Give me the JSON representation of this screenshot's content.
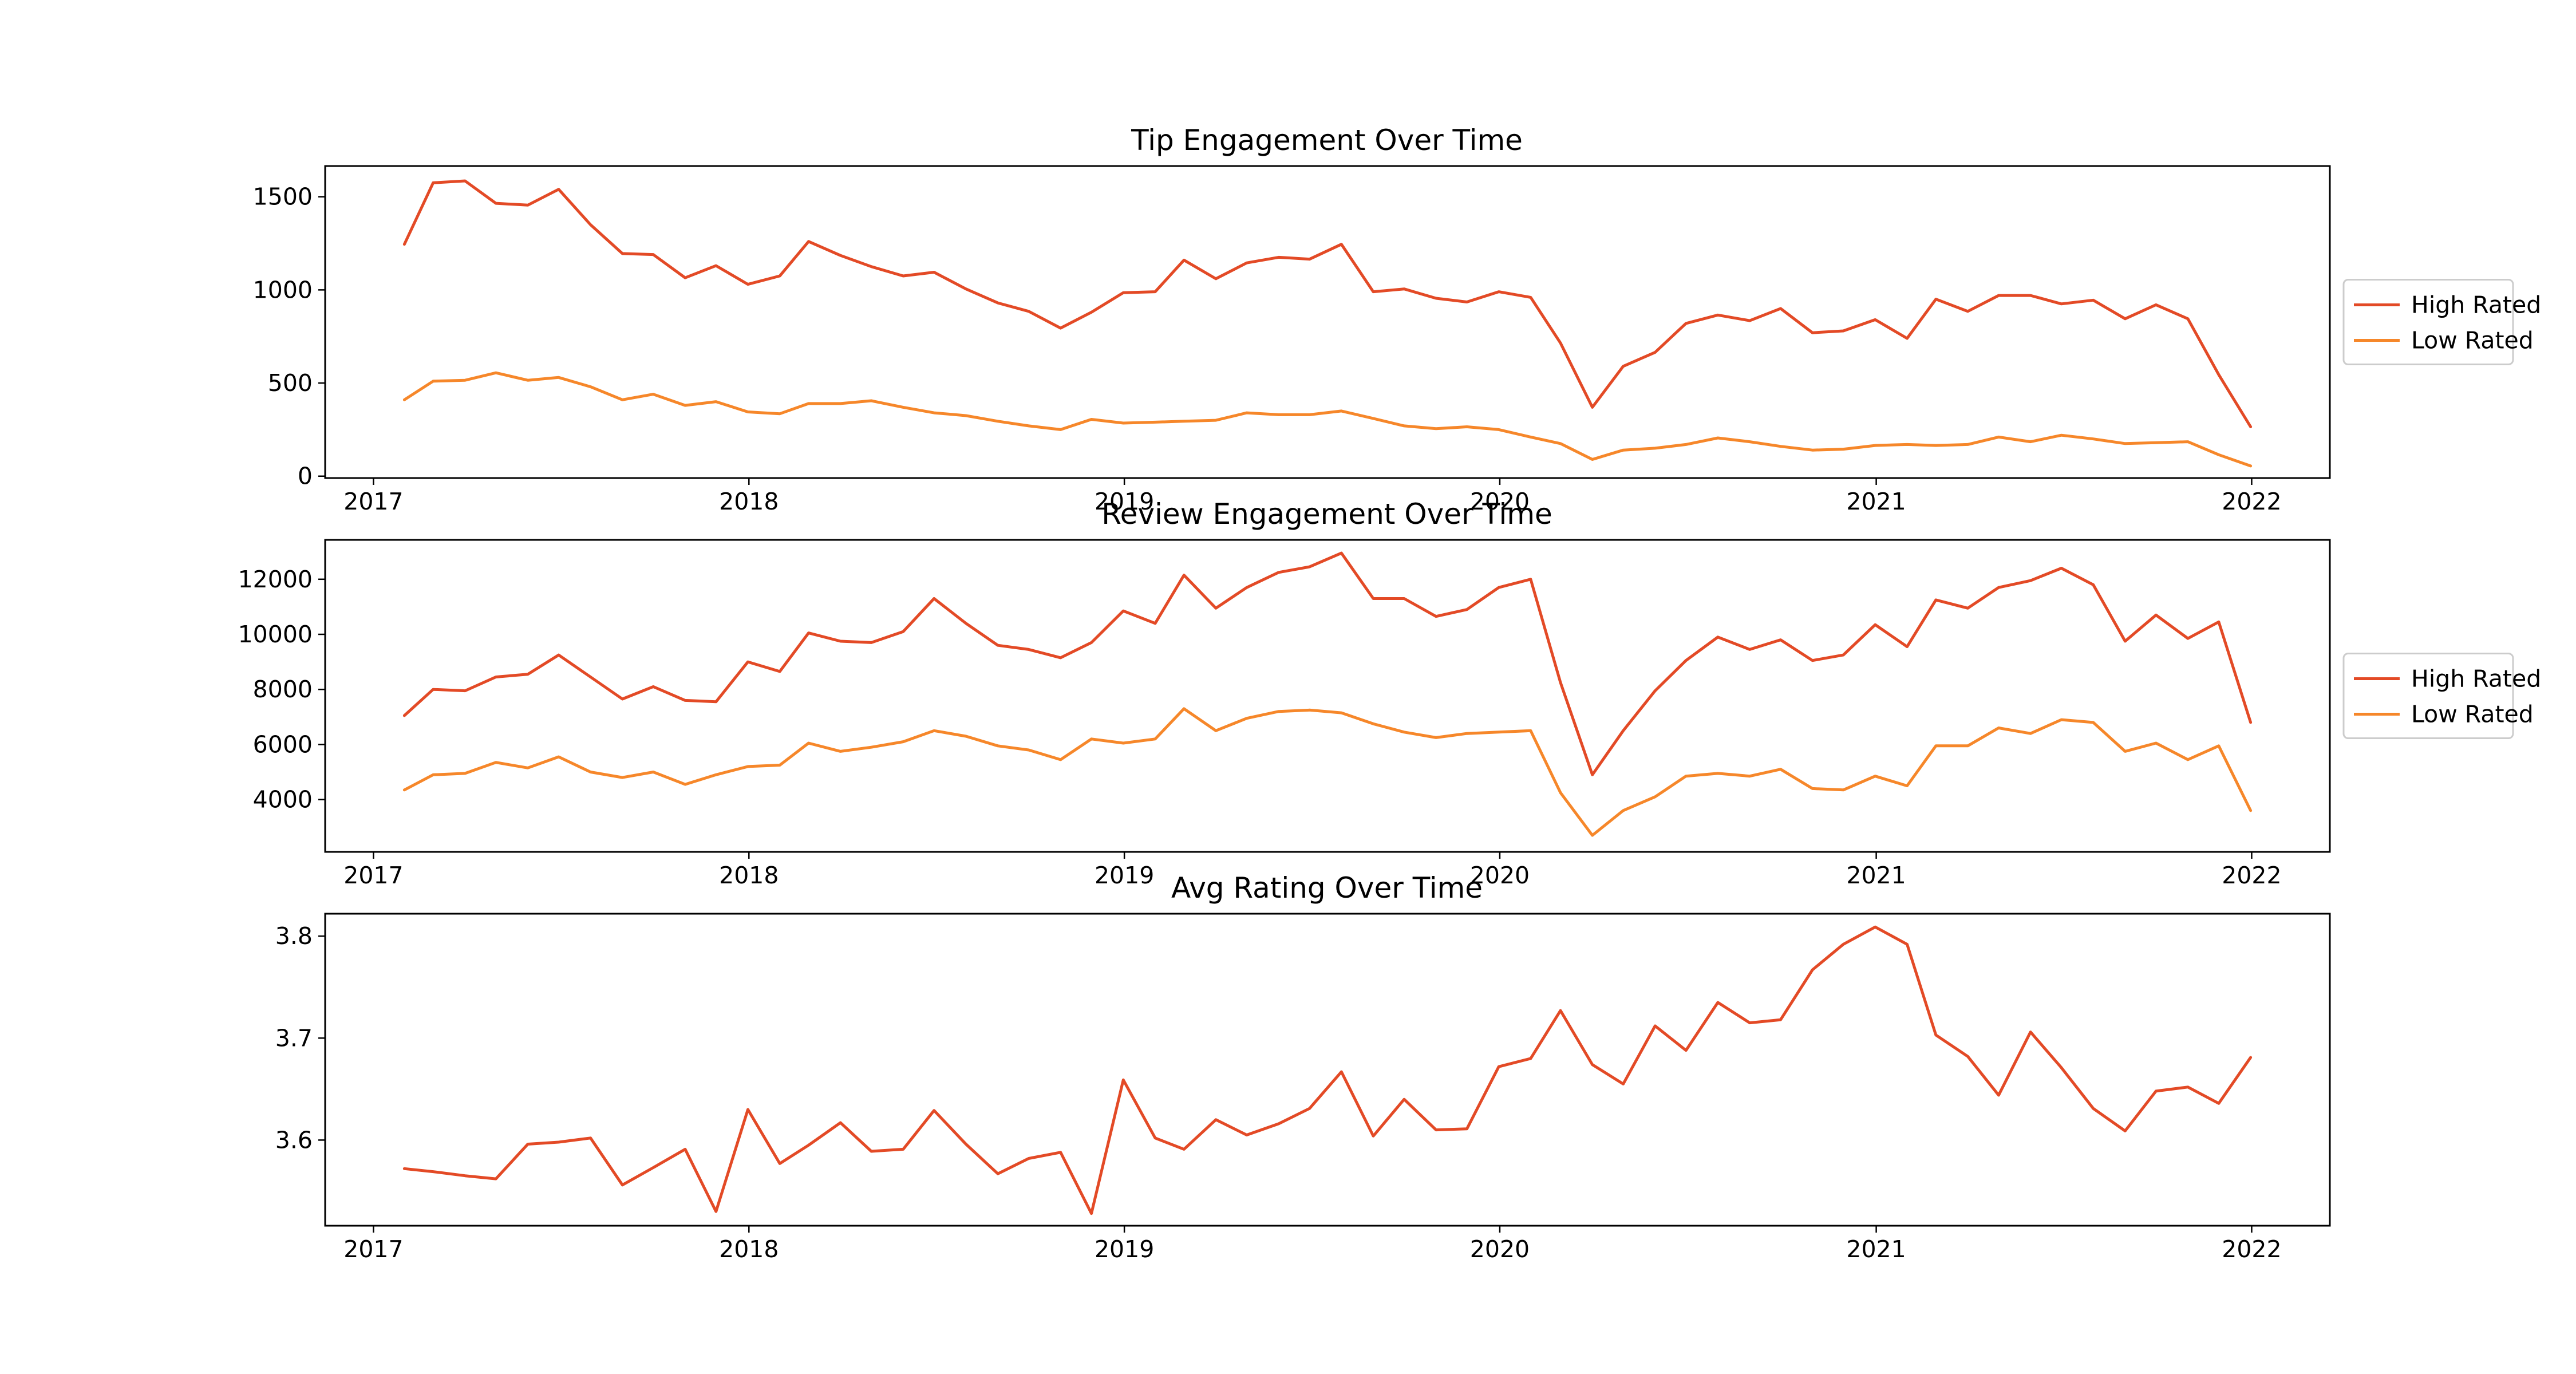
{
  "colors": {
    "high": "#e34a26",
    "low": "#f6872a"
  },
  "chart_data": [
    {
      "type": "line",
      "title": "Tip Engagement Over Time",
      "x_ticks": [
        "2017",
        "2018",
        "2019",
        "2020",
        "2021",
        "2022"
      ],
      "y_ticks": [
        "0",
        "500",
        "1000",
        "1500"
      ],
      "y_tick_values": [
        0,
        500,
        1000,
        1500
      ],
      "xlim": [
        "2016-11-15",
        "2022-03-18"
      ],
      "ylim": [
        -10,
        1665
      ],
      "legend": "center-right",
      "series": [
        {
          "name": "High Rated",
          "color_key": "high",
          "values": [
            1245,
            1575,
            1585,
            1465,
            1455,
            1540,
            1350,
            1195,
            1190,
            1065,
            1130,
            1030,
            1075,
            1260,
            1185,
            1125,
            1075,
            1095,
            1005,
            930,
            885,
            795,
            880,
            985,
            990,
            1160,
            1060,
            1145,
            1175,
            1165,
            1245,
            990,
            1005,
            955,
            935,
            990,
            960,
            715,
            370,
            590,
            665,
            820,
            865,
            835,
            900,
            770,
            780,
            840,
            740,
            950,
            885,
            970,
            970,
            925,
            945,
            845,
            920,
            845,
            545,
            265
          ]
        },
        {
          "name": "Low Rated",
          "color_key": "low",
          "values": [
            410,
            510,
            515,
            555,
            515,
            530,
            480,
            410,
            440,
            380,
            400,
            345,
            335,
            390,
            390,
            405,
            370,
            340,
            325,
            295,
            270,
            250,
            305,
            285,
            290,
            295,
            300,
            340,
            330,
            330,
            350,
            310,
            270,
            255,
            265,
            250,
            210,
            175,
            90,
            140,
            150,
            170,
            205,
            185,
            160,
            140,
            145,
            165,
            170,
            165,
            170,
            210,
            185,
            220,
            200,
            175,
            180,
            185,
            115,
            55
          ]
        }
      ],
      "x": [
        "2017-01-31",
        "2017-02-28",
        "2017-03-31",
        "2017-04-30",
        "2017-05-31",
        "2017-06-30",
        "2017-07-31",
        "2017-08-31",
        "2017-09-30",
        "2017-10-31",
        "2017-11-30",
        "2017-12-31",
        "2018-01-31",
        "2018-02-28",
        "2018-03-31",
        "2018-04-30",
        "2018-05-31",
        "2018-06-30",
        "2018-07-31",
        "2018-08-31",
        "2018-09-30",
        "2018-10-31",
        "2018-11-30",
        "2018-12-31",
        "2019-01-31",
        "2019-02-28",
        "2019-03-31",
        "2019-04-30",
        "2019-05-31",
        "2019-06-30",
        "2019-07-31",
        "2019-08-31",
        "2019-09-30",
        "2019-10-31",
        "2019-11-30",
        "2019-12-31",
        "2020-01-31",
        "2020-02-29",
        "2020-03-31",
        "2020-04-30",
        "2020-05-31",
        "2020-06-30",
        "2020-07-31",
        "2020-08-31",
        "2020-09-30",
        "2020-10-31",
        "2020-11-30",
        "2020-12-31",
        "2021-01-31",
        "2021-02-28",
        "2021-03-31",
        "2021-04-30",
        "2021-05-31",
        "2021-06-30",
        "2021-07-31",
        "2021-08-31",
        "2021-09-30",
        "2021-10-31",
        "2021-11-30",
        "2021-12-31"
      ]
    },
    {
      "type": "line",
      "title": "Review Engagement Over Time",
      "x_ticks": [
        "2017",
        "2018",
        "2019",
        "2020",
        "2021",
        "2022"
      ],
      "y_ticks": [
        "4000",
        "6000",
        "8000",
        "10000",
        "12000"
      ],
      "y_tick_values": [
        4000,
        6000,
        8000,
        10000,
        12000
      ],
      "xlim": [
        "2016-11-15",
        "2022-03-18"
      ],
      "ylim": [
        2100,
        13430
      ],
      "legend": "center-right",
      "series": [
        {
          "name": "High Rated",
          "color_key": "high",
          "values": [
            7050,
            8000,
            7950,
            8450,
            8550,
            9250,
            8450,
            7650,
            8100,
            7600,
            7550,
            9000,
            8650,
            10050,
            9750,
            9700,
            10100,
            11300,
            10400,
            9600,
            9450,
            9150,
            9700,
            10850,
            10400,
            12150,
            10950,
            11700,
            12250,
            12450,
            12950,
            11300,
            11300,
            10650,
            10900,
            11700,
            12000,
            8250,
            4900,
            6500,
            7950,
            9050,
            9900,
            9450,
            9800,
            9050,
            9250,
            10350,
            9550,
            11250,
            10950,
            11700,
            11950,
            12400,
            11800,
            9750,
            10700,
            9850,
            10450,
            6800
          ]
        },
        {
          "name": "Low Rated",
          "color_key": "low",
          "values": [
            4350,
            4900,
            4950,
            5350,
            5150,
            5550,
            5000,
            4800,
            5000,
            4550,
            4900,
            5200,
            5250,
            6050,
            5750,
            5900,
            6100,
            6500,
            6300,
            5950,
            5800,
            5450,
            6200,
            6050,
            6200,
            7300,
            6500,
            6950,
            7200,
            7250,
            7150,
            6750,
            6450,
            6250,
            6400,
            6450,
            6500,
            4250,
            2700,
            3600,
            4100,
            4850,
            4950,
            4850,
            5100,
            4400,
            4350,
            4850,
            4500,
            5950,
            5950,
            6600,
            6400,
            6900,
            6800,
            5750,
            6050,
            5450,
            5950,
            3600
          ]
        }
      ],
      "x": [
        "2017-01-31",
        "2017-02-28",
        "2017-03-31",
        "2017-04-30",
        "2017-05-31",
        "2017-06-30",
        "2017-07-31",
        "2017-08-31",
        "2017-09-30",
        "2017-10-31",
        "2017-11-30",
        "2017-12-31",
        "2018-01-31",
        "2018-02-28",
        "2018-03-31",
        "2018-04-30",
        "2018-05-31",
        "2018-06-30",
        "2018-07-31",
        "2018-08-31",
        "2018-09-30",
        "2018-10-31",
        "2018-11-30",
        "2018-12-31",
        "2019-01-31",
        "2019-02-28",
        "2019-03-31",
        "2019-04-30",
        "2019-05-31",
        "2019-06-30",
        "2019-07-31",
        "2019-08-31",
        "2019-09-30",
        "2019-10-31",
        "2019-11-30",
        "2019-12-31",
        "2020-01-31",
        "2020-02-29",
        "2020-03-31",
        "2020-04-30",
        "2020-05-31",
        "2020-06-30",
        "2020-07-31",
        "2020-08-31",
        "2020-09-30",
        "2020-10-31",
        "2020-11-30",
        "2020-12-31",
        "2021-01-31",
        "2021-02-28",
        "2021-03-31",
        "2021-04-30",
        "2021-05-31",
        "2021-06-30",
        "2021-07-31",
        "2021-08-31",
        "2021-09-30",
        "2021-10-31",
        "2021-11-30",
        "2021-12-31"
      ]
    },
    {
      "type": "line",
      "title": "Avg Rating Over Time",
      "x_ticks": [
        "2017",
        "2018",
        "2019",
        "2020",
        "2021",
        "2022"
      ],
      "y_ticks": [
        "3.6",
        "3.7",
        "3.8"
      ],
      "y_tick_values": [
        3.6,
        3.7,
        3.8
      ],
      "xlim": [
        "2016-11-15",
        "2022-03-18"
      ],
      "ylim": [
        3.516,
        3.822
      ],
      "legend": "none",
      "series": [
        {
          "color_key": "high",
          "values": [
            3.572,
            3.569,
            3.565,
            3.562,
            3.596,
            3.598,
            3.602,
            3.556,
            3.573,
            3.591,
            3.53,
            3.63,
            3.577,
            3.595,
            3.617,
            3.589,
            3.591,
            3.629,
            3.596,
            3.567,
            3.582,
            3.588,
            3.528,
            3.659,
            3.602,
            3.591,
            3.62,
            3.605,
            3.616,
            3.631,
            3.667,
            3.604,
            3.64,
            3.61,
            3.611,
            3.672,
            3.68,
            3.727,
            3.674,
            3.655,
            3.712,
            3.688,
            3.735,
            3.715,
            3.718,
            3.767,
            3.792,
            3.809,
            3.792,
            3.703,
            3.682,
            3.644,
            3.706,
            3.671,
            3.631,
            3.609,
            3.648,
            3.652,
            3.636,
            3.681
          ]
        }
      ],
      "x": [
        "2017-01-31",
        "2017-02-28",
        "2017-03-31",
        "2017-04-30",
        "2017-05-31",
        "2017-06-30",
        "2017-07-31",
        "2017-08-31",
        "2017-09-30",
        "2017-10-31",
        "2017-11-30",
        "2017-12-31",
        "2018-01-31",
        "2018-02-28",
        "2018-03-31",
        "2018-04-30",
        "2018-05-31",
        "2018-06-30",
        "2018-07-31",
        "2018-08-31",
        "2018-09-30",
        "2018-10-31",
        "2018-11-30",
        "2018-12-31",
        "2019-01-31",
        "2019-02-28",
        "2019-03-31",
        "2019-04-30",
        "2019-05-31",
        "2019-06-30",
        "2019-07-31",
        "2019-08-31",
        "2019-09-30",
        "2019-10-31",
        "2019-11-30",
        "2019-12-31",
        "2020-01-31",
        "2020-02-29",
        "2020-03-31",
        "2020-04-30",
        "2020-05-31",
        "2020-06-30",
        "2020-07-31",
        "2020-08-31",
        "2020-09-30",
        "2020-10-31",
        "2020-11-30",
        "2020-12-31",
        "2021-01-31",
        "2021-02-28",
        "2021-03-31",
        "2021-04-30",
        "2021-05-31",
        "2021-06-30",
        "2021-07-31",
        "2021-08-31",
        "2021-09-30",
        "2021-10-31",
        "2021-11-30",
        "2021-12-31"
      ]
    }
  ]
}
